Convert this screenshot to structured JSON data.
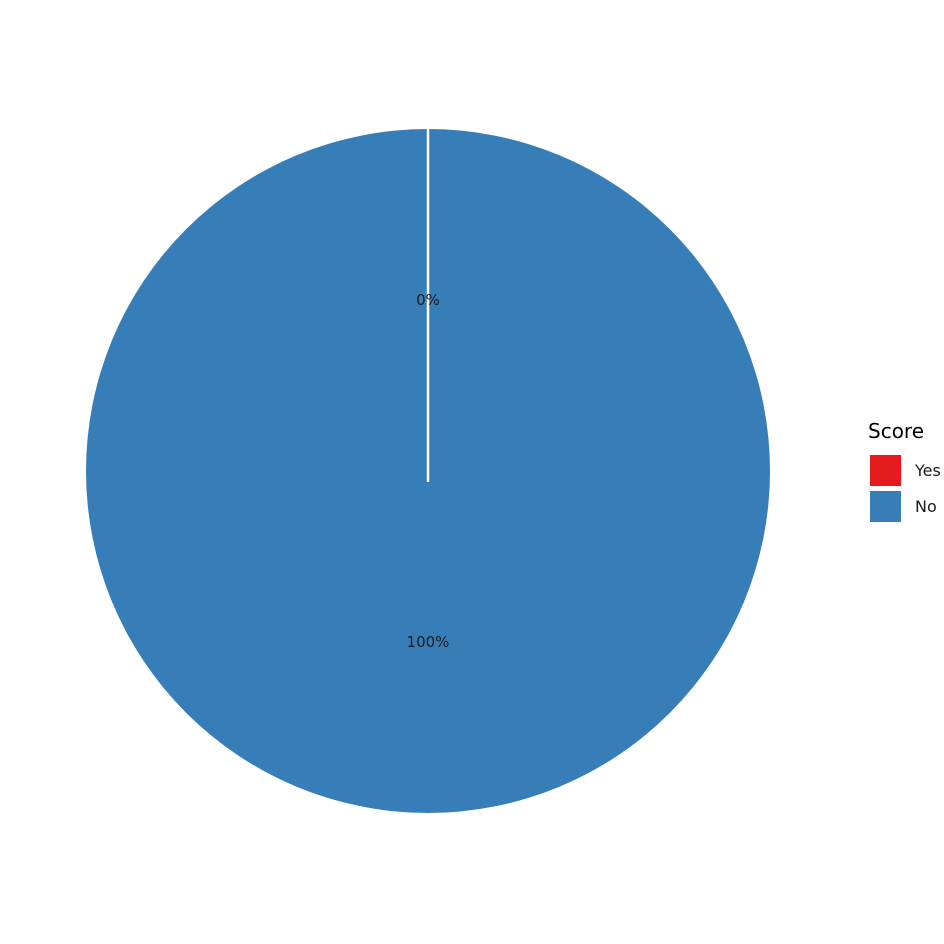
{
  "chart_data": {
    "type": "pie",
    "title": "",
    "categories": [
      "Yes",
      "No"
    ],
    "values": [
      0,
      100
    ],
    "labels": [
      "0%",
      "100%"
    ],
    "colors": [
      "#e41a1c",
      "#377eb8"
    ],
    "legend": {
      "title": "Score",
      "placement": "right"
    }
  }
}
